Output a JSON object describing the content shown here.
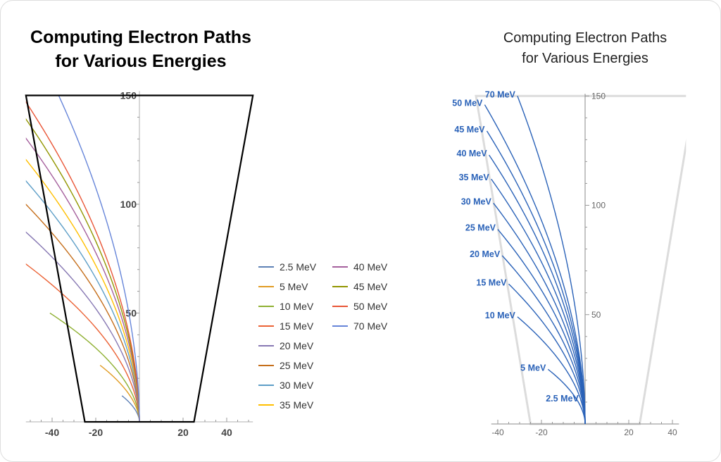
{
  "chart_data": [
    {
      "type": "line",
      "title": "Computing Electron Paths\nfor Various Energies",
      "title_lines": [
        "Computing Electron Paths",
        "for Various Energies"
      ],
      "xlim": [
        -52,
        52
      ],
      "ylim": [
        0,
        152
      ],
      "x_ticks": [
        "-40",
        "-20",
        "20",
        "40"
      ],
      "x_tick_values": [
        -40,
        -20,
        20,
        40
      ],
      "y_ticks": [
        "50",
        "100",
        "150"
      ],
      "y_tick_values": [
        50,
        100,
        150
      ],
      "grid": false,
      "legend_position": "right",
      "outline": {
        "x": [
          -25,
          -52,
          52,
          25
        ],
        "y": [
          0,
          150,
          150,
          0
        ]
      },
      "series": [
        {
          "name": "2.5 MeV",
          "color": "#5e81b5",
          "start": [
            -8,
            12
          ]
        },
        {
          "name": "5 MeV",
          "color": "#e19c24",
          "start": [
            -18,
            26
          ]
        },
        {
          "name": "10 MeV",
          "color": "#8fb032",
          "start": [
            -41,
            50
          ]
        },
        {
          "name": "15 MeV",
          "color": "#eb6235",
          "start": [
            -54,
            74
          ]
        },
        {
          "name": "20 MeV",
          "color": "#8778b3",
          "start": [
            -54,
            89
          ]
        },
        {
          "name": "25 MeV",
          "color": "#c56e1a",
          "start": [
            -54,
            102
          ]
        },
        {
          "name": "30 MeV",
          "color": "#5d9ec7",
          "start": [
            -54,
            113
          ]
        },
        {
          "name": "35 MeV",
          "color": "#ffbf00",
          "start": [
            -54,
            123
          ]
        },
        {
          "name": "40 MeV",
          "color": "#a5609d",
          "start": [
            -54,
            133
          ]
        },
        {
          "name": "45 MeV",
          "color": "#929600",
          "start": [
            -54,
            142
          ]
        },
        {
          "name": "50 MeV",
          "color": "#e95536",
          "start": [
            -54,
            150
          ]
        },
        {
          "name": "70 MeV",
          "color": "#6685d9",
          "start": [
            -37,
            150
          ]
        }
      ]
    },
    {
      "type": "line",
      "title": "Computing Electron Paths\nfor Various Energies",
      "title_lines": [
        "Computing Electron Paths",
        "for Various Energies"
      ],
      "xlim": [
        -43,
        43
      ],
      "ylim": [
        0,
        152
      ],
      "x_ticks": [
        "-40",
        "-20",
        "20",
        "40"
      ],
      "x_tick_values": [
        -40,
        -20,
        20,
        40
      ],
      "y_ticks": [
        "50",
        "100",
        "150"
      ],
      "y_tick_values": [
        50,
        100,
        150
      ],
      "grid": false,
      "outline": {
        "x": [
          -25,
          -50,
          50,
          25
        ],
        "y": [
          0,
          150,
          150,
          0
        ]
      },
      "line_color": "#2a62b8",
      "series": [
        {
          "name": "2.5 MeV",
          "start": [
            -2,
            11
          ]
        },
        {
          "name": "5 MeV",
          "start": [
            -17,
            25
          ]
        },
        {
          "name": "10 MeV",
          "start": [
            -31,
            49
          ]
        },
        {
          "name": "15 MeV",
          "start": [
            -35,
            64
          ]
        },
        {
          "name": "20 MeV",
          "start": [
            -38,
            77
          ]
        },
        {
          "name": "25 MeV",
          "start": [
            -40,
            89
          ]
        },
        {
          "name": "30 MeV",
          "start": [
            -42,
            101
          ]
        },
        {
          "name": "35 MeV",
          "start": [
            -43,
            112
          ]
        },
        {
          "name": "40 MeV",
          "start": [
            -44,
            123
          ]
        },
        {
          "name": "45 MeV",
          "start": [
            -45,
            134
          ]
        },
        {
          "name": "50 MeV",
          "start": [
            -46,
            146
          ]
        },
        {
          "name": "70 MeV",
          "start": [
            -31,
            150
          ]
        }
      ]
    }
  ]
}
